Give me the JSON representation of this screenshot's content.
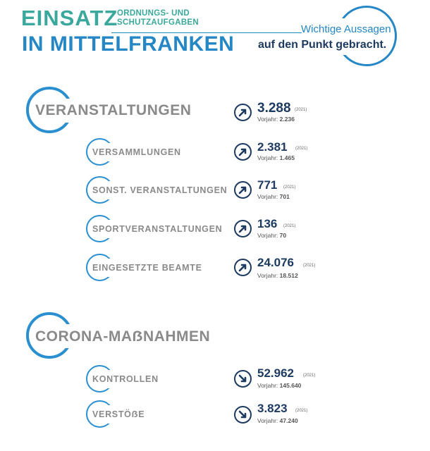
{
  "header": {
    "title_line1": "EINSATZ",
    "subtitle_line1": "ORDNUNGS- UND",
    "subtitle_line2": "SCHUTZAUFGABEN",
    "title_line2": "IN MITTELFRANKEN",
    "tagline_line1": "Wichtige Aussagen",
    "tagline_line2": "auf den Punkt gebracht."
  },
  "sections": [
    {
      "title": "VERANSTALTUNGEN",
      "value": "3.288",
      "year": "(2021)",
      "prev_label": "Vorjahr:",
      "prev_value": "2.236",
      "trend": "up",
      "items": [
        {
          "title": "VERSAMMLUNGEN",
          "value": "2.381",
          "year": "(2021)",
          "prev_label": "Vorjahr:",
          "prev_value": "1.465",
          "trend": "up"
        },
        {
          "title": "SONST. VERANSTALTUNGEN",
          "value": "771",
          "year": "(2021)",
          "prev_label": "Vorjahr:",
          "prev_value": "701",
          "trend": "up"
        },
        {
          "title": "SPORTVERANSTALTUNGEN",
          "value": "136",
          "year": "(2021)",
          "prev_label": "Vorjahr:",
          "prev_value": "70",
          "trend": "up"
        },
        {
          "title": "EINGESETZTE BEAMTE",
          "value": "24.076",
          "year": "(2021)",
          "prev_label": "Vorjahr:",
          "prev_value": "18.512",
          "trend": "up"
        }
      ]
    },
    {
      "title": "CORONA-MAẞNAHMEN",
      "items": [
        {
          "title": "KONTROLLEN",
          "value": "52.962",
          "year": "(2021)",
          "prev_label": "Vorjahr:",
          "prev_value": "145.640",
          "trend": "down"
        },
        {
          "title": "VERSTÖẞE",
          "value": "3.823",
          "year": "(2021)",
          "prev_label": "Vorjahr:",
          "prev_value": "47.240",
          "trend": "down"
        }
      ]
    }
  ],
  "colors": {
    "blue": "#2a8fd0",
    "navy": "#1d3b61",
    "teal": "#3aa89c",
    "gray": "#8a8a8a"
  },
  "icons": {
    "up": "arrow-up-right-icon",
    "down": "arrow-down-right-icon"
  }
}
